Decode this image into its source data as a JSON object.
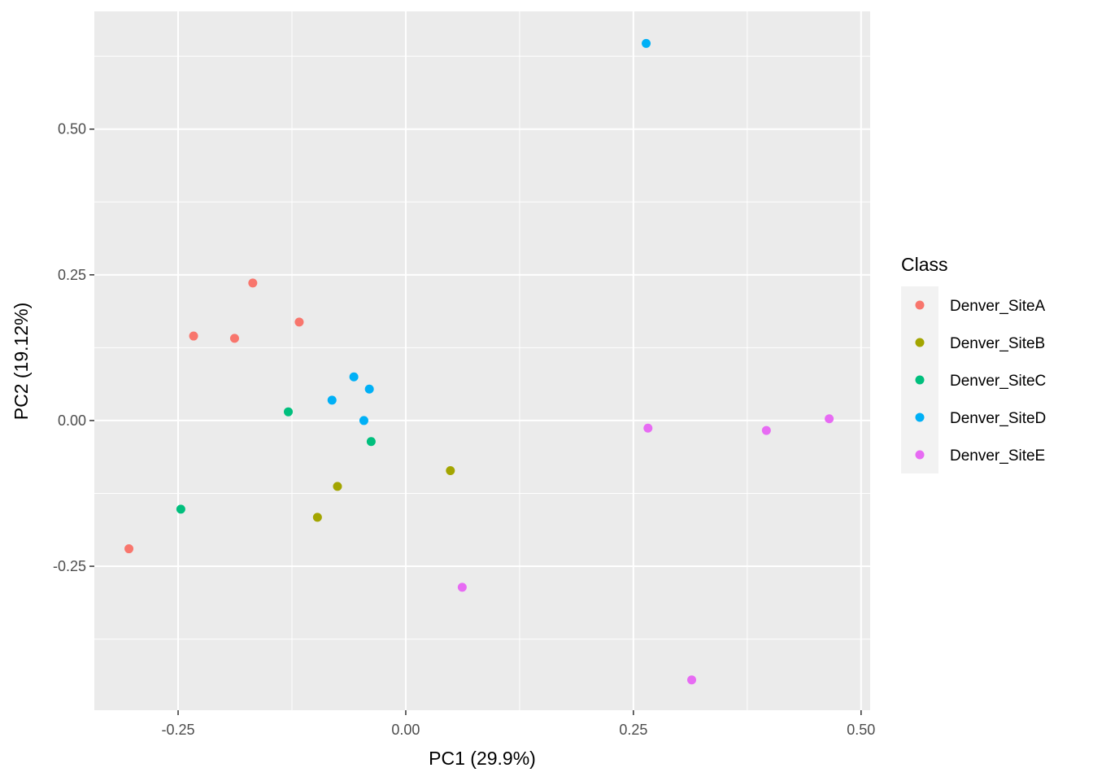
{
  "chart_data": {
    "type": "scatter",
    "xlabel": "PC1 (29.9%)",
    "ylabel": "PC2 (19.12%)",
    "xlim": [
      -0.342,
      0.51
    ],
    "ylim": [
      -0.497,
      0.702
    ],
    "x_ticks": [
      -0.25,
      0.0,
      0.25,
      0.5
    ],
    "x_tick_labels": [
      "-0.25",
      "0.00",
      "0.25",
      "0.50"
    ],
    "y_ticks": [
      -0.25,
      0.0,
      0.25,
      0.5
    ],
    "y_tick_labels": [
      "-0.25",
      "0.00",
      "0.25",
      "0.50"
    ],
    "grid": true,
    "legend": {
      "title": "Class",
      "placement": "right"
    },
    "series": [
      {
        "name": "Denver_SiteA",
        "color": "#F8766D",
        "points": [
          [
            -0.168,
            0.236
          ],
          [
            -0.233,
            0.145
          ],
          [
            -0.188,
            0.141
          ],
          [
            -0.117,
            0.169
          ],
          [
            -0.304,
            -0.22
          ]
        ]
      },
      {
        "name": "Denver_SiteB",
        "color": "#A3A500",
        "points": [
          [
            0.049,
            -0.086
          ],
          [
            -0.075,
            -0.113
          ],
          [
            -0.097,
            -0.166
          ]
        ]
      },
      {
        "name": "Denver_SiteC",
        "color": "#00BF7D",
        "points": [
          [
            -0.129,
            0.015
          ],
          [
            -0.038,
            -0.036
          ],
          [
            -0.247,
            -0.152
          ]
        ]
      },
      {
        "name": "Denver_SiteD",
        "color": "#00B0F6",
        "points": [
          [
            0.264,
            0.647
          ],
          [
            -0.057,
            0.075
          ],
          [
            -0.04,
            0.054
          ],
          [
            -0.081,
            0.035
          ],
          [
            -0.046,
            0.0
          ]
        ]
      },
      {
        "name": "Denver_SiteE",
        "color": "#E76BF3",
        "points": [
          [
            0.266,
            -0.013
          ],
          [
            0.396,
            -0.017
          ],
          [
            0.465,
            0.003
          ],
          [
            0.062,
            -0.286
          ],
          [
            0.314,
            -0.445
          ]
        ]
      }
    ]
  }
}
